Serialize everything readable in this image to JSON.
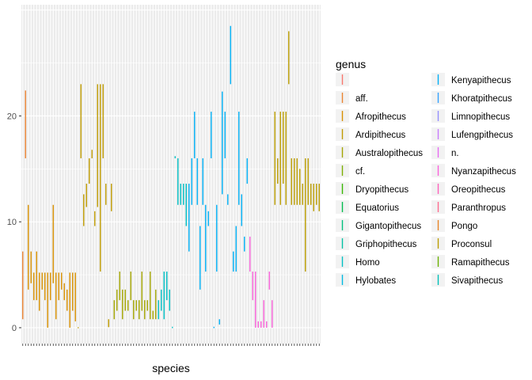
{
  "chart_data": {
    "type": "range",
    "title": "",
    "xlabel": "species",
    "ylabel": "",
    "ylim": [
      -1.5,
      30.5
    ],
    "yticks": [
      0,
      10,
      20
    ],
    "grid": true,
    "legend": {
      "title": "genus",
      "position": "right",
      "entries": [
        {
          "name": "",
          "color": "#F8766D"
        },
        {
          "name": "aff.",
          "color": "#EA8331"
        },
        {
          "name": "Afropithecus",
          "color": "#D89000"
        },
        {
          "name": "Ardipithecus",
          "color": "#C09B00"
        },
        {
          "name": "Australopithecus",
          "color": "#A3A500"
        },
        {
          "name": "cf.",
          "color": "#7CAE00"
        },
        {
          "name": "Dryopithecus",
          "color": "#39B600"
        },
        {
          "name": "Equatorius",
          "color": "#00BB4E"
        },
        {
          "name": "Gigantopithecus",
          "color": "#00BF7D"
        },
        {
          "name": "Griphopithecus",
          "color": "#00C1A3"
        },
        {
          "name": "Homo",
          "color": "#00BFC4"
        },
        {
          "name": "Hylobates",
          "color": "#00BAE0"
        },
        {
          "name": "Kenyapithecus",
          "color": "#00B0F6"
        },
        {
          "name": "Khoratpithecus",
          "color": "#35A2FF"
        },
        {
          "name": "Limnopithecus",
          "color": "#9590FF"
        },
        {
          "name": "Lufengpithecus",
          "color": "#C77CFF"
        },
        {
          "name": "n.",
          "color": "#E76BF3"
        },
        {
          "name": "Nyanzapithecus",
          "color": "#FA62DB"
        },
        {
          "name": "Oreopithecus",
          "color": "#FF62BC"
        },
        {
          "name": "Paranthropus",
          "color": "#FF6C90"
        },
        {
          "name": "Pongo",
          "color": "#E88526"
        },
        {
          "name": "Proconsul",
          "color": "#BB9D00"
        },
        {
          "name": "Ramapithecus",
          "color": "#6BB100"
        },
        {
          "name": "Sivapithecus",
          "color": "#00C0B8"
        }
      ]
    },
    "series": [
      {
        "genus": "aff.",
        "ranges": [
          [
            0.8,
            7.2
          ],
          [
            16,
            22.4
          ]
        ]
      },
      {
        "genus": "Afropithecus",
        "ranges": [
          [
            3.6,
            11.6
          ],
          [
            4.2,
            7.2
          ],
          [
            2.6,
            5.2
          ],
          [
            2.6,
            7.2
          ],
          [
            1.6,
            5.2
          ],
          [
            3.6,
            5.2
          ],
          [
            2.6,
            5.2
          ],
          [
            0,
            5.2
          ],
          [
            2.6,
            5.2
          ],
          [
            4.2,
            11.6
          ],
          [
            0.8,
            5.2
          ],
          [
            2.6,
            5.2
          ],
          [
            3.6,
            5.2
          ],
          [
            2.6,
            4.2
          ],
          [
            1.6,
            3.6
          ],
          [
            0,
            5.2
          ],
          [
            1.6,
            5.2
          ],
          [
            0.6,
            5.2
          ]
        ]
      },
      {
        "genus": "Ardipithecus",
        "ranges": [
          [
            -0.05,
            0.05
          ],
          [
            16,
            23
          ],
          [
            9.6,
            12.6
          ],
          [
            11.4,
            13.6
          ],
          [
            13.6,
            16
          ],
          [
            16,
            16.8
          ],
          [
            9.6,
            11
          ],
          [
            11.4,
            23
          ],
          [
            5.3,
            23
          ],
          [
            16,
            23
          ],
          [
            11.6,
            13.6
          ],
          [
            0.05,
            0.8
          ],
          [
            11,
            13.6
          ]
        ]
      },
      {
        "genus": "Australopithecus",
        "ranges": [
          [
            0.8,
            2.6
          ],
          [
            1.6,
            3.6
          ],
          [
            2.6,
            5.3
          ],
          [
            0.8,
            3.6
          ],
          [
            1.6,
            3.6
          ],
          [
            1.6,
            2.6
          ],
          [
            2.6,
            5.3
          ],
          [
            0.8,
            2.6
          ],
          [
            1.6,
            2.6
          ],
          [
            0.8,
            2.6
          ],
          [
            1.6,
            5.3
          ],
          [
            0.8,
            2.6
          ],
          [
            1.6,
            2.6
          ],
          [
            0.8,
            5.3
          ],
          [
            0.8,
            1.6
          ],
          [
            0.8,
            3.6
          ]
        ]
      },
      {
        "genus": "Homo",
        "ranges": [
          [
            0.8,
            2.6
          ],
          [
            1.6,
            3.6
          ],
          [
            0.8,
            5.3
          ],
          [
            2.6,
            5.3
          ],
          [
            1.6,
            3.6
          ],
          [
            0,
            0.05
          ],
          [
            16,
            16.2
          ],
          [
            11.6,
            16
          ],
          [
            11.6,
            13.6
          ],
          [
            11.6,
            13.6
          ],
          [
            9.6,
            13.6
          ]
        ]
      },
      {
        "genus": "Kenyapithecus",
        "ranges": [
          [
            7.2,
            13.6
          ],
          [
            11.6,
            16
          ],
          [
            16,
            20.4
          ],
          [
            11.6,
            16
          ],
          [
            3.6,
            9.6
          ],
          [
            11.6,
            16
          ],
          [
            5.3,
            11.6
          ],
          [
            9.6,
            11
          ],
          [
            16,
            20.4
          ],
          [
            0,
            0.05
          ],
          [
            5.3,
            11.6
          ],
          [
            0.3,
            0.8
          ],
          [
            12.6,
            22.3
          ],
          [
            16,
            20.4
          ],
          [
            11.6,
            12.6
          ],
          [
            23,
            28.5
          ],
          [
            5.3,
            7.2
          ],
          [
            5.3,
            9.6
          ],
          [
            11.6,
            20.4
          ],
          [
            9.6,
            12.6
          ],
          [
            7.2,
            8.6
          ],
          [
            13.6,
            16
          ]
        ]
      },
      {
        "genus": "Nyanzapithecus",
        "ranges": [
          [
            5.3,
            8.6
          ],
          [
            2.6,
            5.3
          ],
          [
            0,
            5.3
          ],
          [
            0,
            0.6
          ],
          [
            0,
            0.6
          ],
          [
            0,
            2.6
          ],
          [
            0,
            0.6
          ],
          [
            3.6,
            5.3
          ],
          [
            0,
            2.6
          ]
        ]
      },
      {
        "genus": "Proconsul",
        "ranges": [
          [
            11.6,
            20.4
          ],
          [
            13.6,
            16
          ],
          [
            11.6,
            20.4
          ],
          [
            13.6,
            20.4
          ],
          [
            11.6,
            20.4
          ],
          [
            23,
            28
          ],
          [
            11.6,
            16
          ],
          [
            11.6,
            16
          ],
          [
            11.6,
            16
          ],
          [
            11.6,
            15
          ],
          [
            11.6,
            13.6
          ],
          [
            5.3,
            16
          ],
          [
            11.6,
            16
          ],
          [
            11.6,
            13.6
          ],
          [
            11,
            13.6
          ],
          [
            11.6,
            13.6
          ],
          [
            11,
            13.6
          ]
        ]
      }
    ]
  }
}
